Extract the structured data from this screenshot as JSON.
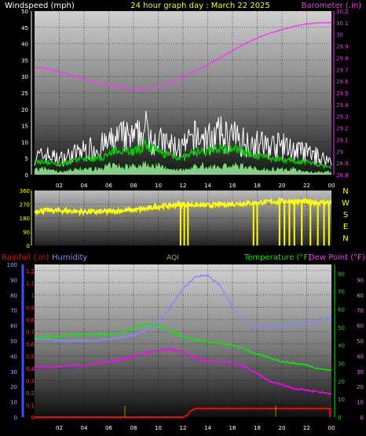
{
  "header": {
    "left_label": "Windspeed (mph)",
    "title": "24 hour graph day : March 22 2025",
    "right_label": "Barometer (.in)"
  },
  "colors": {
    "bg": "#000000",
    "wind": "#ffffff",
    "gust_avg": "#00cc00",
    "wind_fill": "#99ee99",
    "barometer": "#ff33ff",
    "direction": "#ffff00",
    "humidity": "#8888ff",
    "temperature": "#00ee00",
    "dewpoint": "#ff00ff",
    "rainfall": "#ff0000",
    "rain_axis": "#3355ff"
  },
  "hour_labels": [
    "02",
    "04",
    "06",
    "08",
    "10",
    "12",
    "14",
    "16",
    "18",
    "20",
    "22",
    "00"
  ],
  "direction_letters": [
    "N",
    "W",
    "S",
    "E",
    "N"
  ],
  "bottom_header": {
    "rainfall": "Rainfall (.in)",
    "humidity": "Humidity",
    "aqi": "AQI",
    "temperature": "Temperature (°F)",
    "dewpoint": "Dew Point (°F)"
  },
  "chart_data": [
    {
      "type": "line",
      "name_hint": "wind and barometer",
      "x_unit": "hour",
      "xlim": [
        0,
        24
      ],
      "ylim_left": [
        0,
        50
      ],
      "ylim_right": [
        28.8,
        30.2
      ],
      "left_ticks": [
        0,
        5,
        10,
        15,
        20,
        25,
        30,
        35,
        40,
        45,
        50
      ],
      "right_ticks": [
        "28.8",
        "28.9",
        "29",
        "29.1",
        "29.2",
        "29.3",
        "29.4",
        "29.5",
        "29.6",
        "29.7",
        "29.8",
        "29.9",
        "30",
        "30.1",
        "30.2"
      ],
      "series": [
        {
          "key": "barometer",
          "axis": "right",
          "x": [
            0,
            1,
            2,
            3,
            4,
            5,
            6,
            7,
            8,
            9,
            10,
            11,
            12,
            13,
            14,
            15,
            16,
            17,
            18,
            19,
            20,
            21,
            22,
            23,
            24
          ],
          "y": [
            29.72,
            29.71,
            29.68,
            29.65,
            29.62,
            29.59,
            29.57,
            29.55,
            29.54,
            29.54,
            29.55,
            29.58,
            29.64,
            29.69,
            29.74,
            29.8,
            29.86,
            29.92,
            29.97,
            30.01,
            30.04,
            30.07,
            30.09,
            30.1,
            30.1
          ]
        },
        {
          "key": "wind_max",
          "axis": "left",
          "x": [
            0,
            1,
            2,
            3,
            4,
            5,
            6,
            7,
            8,
            9,
            10,
            11,
            12,
            13,
            14,
            15,
            16,
            17,
            18,
            19,
            20,
            21,
            22,
            23,
            24
          ],
          "y": [
            8,
            9,
            7,
            9,
            11,
            12,
            14,
            17,
            16,
            20,
            15,
            13,
            12,
            17,
            16,
            18,
            17,
            15,
            14,
            13,
            13,
            11,
            10,
            8,
            6
          ]
        },
        {
          "key": "wind_avg",
          "axis": "left",
          "x": [
            0,
            1,
            2,
            3,
            4,
            5,
            6,
            7,
            8,
            9,
            10,
            11,
            12,
            13,
            14,
            15,
            16,
            17,
            18,
            19,
            20,
            21,
            22,
            23,
            24
          ],
          "y": [
            4,
            4,
            3,
            4,
            5,
            5,
            6,
            8,
            7,
            9,
            7,
            6,
            5,
            7,
            7,
            8,
            8,
            7,
            6,
            5,
            5,
            4,
            4,
            3,
            2
          ]
        },
        {
          "key": "wind_min",
          "axis": "left",
          "x": [
            0,
            1,
            2,
            3,
            4,
            5,
            6,
            7,
            8,
            9,
            10,
            11,
            12,
            13,
            14,
            15,
            16,
            17,
            18,
            19,
            20,
            21,
            22,
            23,
            24
          ],
          "y": [
            2,
            2,
            1,
            2,
            2,
            2,
            3,
            3,
            3,
            4,
            3,
            2,
            2,
            3,
            3,
            3,
            3,
            3,
            2,
            2,
            2,
            2,
            1,
            1,
            1
          ]
        }
      ]
    },
    {
      "type": "scatter",
      "name_hint": "wind direction",
      "x_unit": "hour",
      "xlim": [
        0,
        24
      ],
      "ylim": [
        0,
        360
      ],
      "left_ticks": [
        0,
        90,
        180,
        270,
        360
      ],
      "series": [
        {
          "key": "direction",
          "x": [
            0,
            1,
            2,
            3,
            4,
            5,
            6,
            7,
            8,
            9,
            10,
            11,
            12,
            13,
            14,
            15,
            16,
            17,
            18,
            19,
            20,
            21,
            22,
            23,
            24
          ],
          "y": [
            225,
            230,
            228,
            225,
            222,
            220,
            222,
            228,
            232,
            240,
            255,
            262,
            270,
            265,
            262,
            268,
            272,
            275,
            280,
            285,
            290,
            288,
            285,
            282,
            280
          ]
        }
      ],
      "dropouts_hours": [
        11.8,
        12.1,
        12.4,
        17.7,
        18.0,
        19.8,
        20.2,
        20.6,
        21.0,
        21.6,
        22.3,
        22.9,
        23.4,
        23.8
      ]
    },
    {
      "type": "line",
      "name_hint": "humidity temperature dewpoint rain",
      "x_unit": "hour",
      "xlim": [
        0,
        24
      ],
      "rain_ticks": [
        "0",
        "0.1",
        "0.2",
        "0.3",
        "0.4",
        "0.5",
        "0.6",
        "0.7",
        "0.8",
        "0.9",
        "1",
        "1.1",
        "1.2"
      ],
      "humidity_ticks": [
        0,
        10,
        20,
        30,
        40,
        50,
        60,
        70,
        80,
        90,
        100
      ],
      "temp_ticks": [
        0,
        10,
        20,
        30,
        40,
        50,
        60,
        70,
        80
      ],
      "dew_ticks": [
        0,
        10,
        20,
        30,
        40,
        50,
        60,
        70,
        80,
        90
      ],
      "ylim_humidity": [
        0,
        100
      ],
      "ylim_temp": [
        0,
        85
      ],
      "series": [
        {
          "key": "humidity",
          "x": [
            0,
            1,
            2,
            3,
            4,
            5,
            6,
            7,
            8,
            9,
            10,
            11,
            12,
            13,
            14,
            15,
            16,
            17,
            18,
            19,
            20,
            21,
            22,
            23,
            24
          ],
          "y": [
            51,
            51,
            50,
            50,
            50,
            50,
            51,
            52,
            54,
            57,
            62,
            72,
            84,
            92,
            93,
            86,
            72,
            62,
            59,
            60,
            60,
            61,
            62,
            63,
            65
          ]
        },
        {
          "key": "temperature",
          "x": [
            0,
            1,
            2,
            3,
            4,
            5,
            6,
            7,
            8,
            9,
            10,
            11,
            12,
            13,
            14,
            15,
            16,
            17,
            18,
            19,
            20,
            21,
            22,
            23,
            24
          ],
          "y": [
            44,
            45,
            45,
            46,
            46,
            46,
            46,
            47,
            50,
            52,
            51,
            48,
            45,
            43,
            42,
            41,
            40,
            38,
            35,
            33,
            31,
            30,
            29,
            27,
            26
          ]
        },
        {
          "key": "dewpoint",
          "x": [
            0,
            1,
            2,
            3,
            4,
            5,
            6,
            7,
            8,
            9,
            10,
            11,
            12,
            13,
            14,
            15,
            16,
            17,
            18,
            19,
            20,
            21,
            22,
            23,
            24
          ],
          "y": [
            28,
            28,
            28,
            29,
            29,
            30,
            31,
            32,
            34,
            36,
            37,
            38,
            36,
            33,
            31,
            31,
            30,
            28,
            24,
            20,
            18,
            16,
            15,
            14,
            13
          ]
        },
        {
          "key": "rainfall",
          "x": [
            0,
            12,
            12.4,
            12.6,
            13,
            14,
            24
          ],
          "y": [
            0,
            0,
            0.02,
            0.05,
            0.07,
            0.07,
            0.07
          ]
        }
      ],
      "markers_hours": [
        7.3,
        19.5
      ]
    }
  ]
}
